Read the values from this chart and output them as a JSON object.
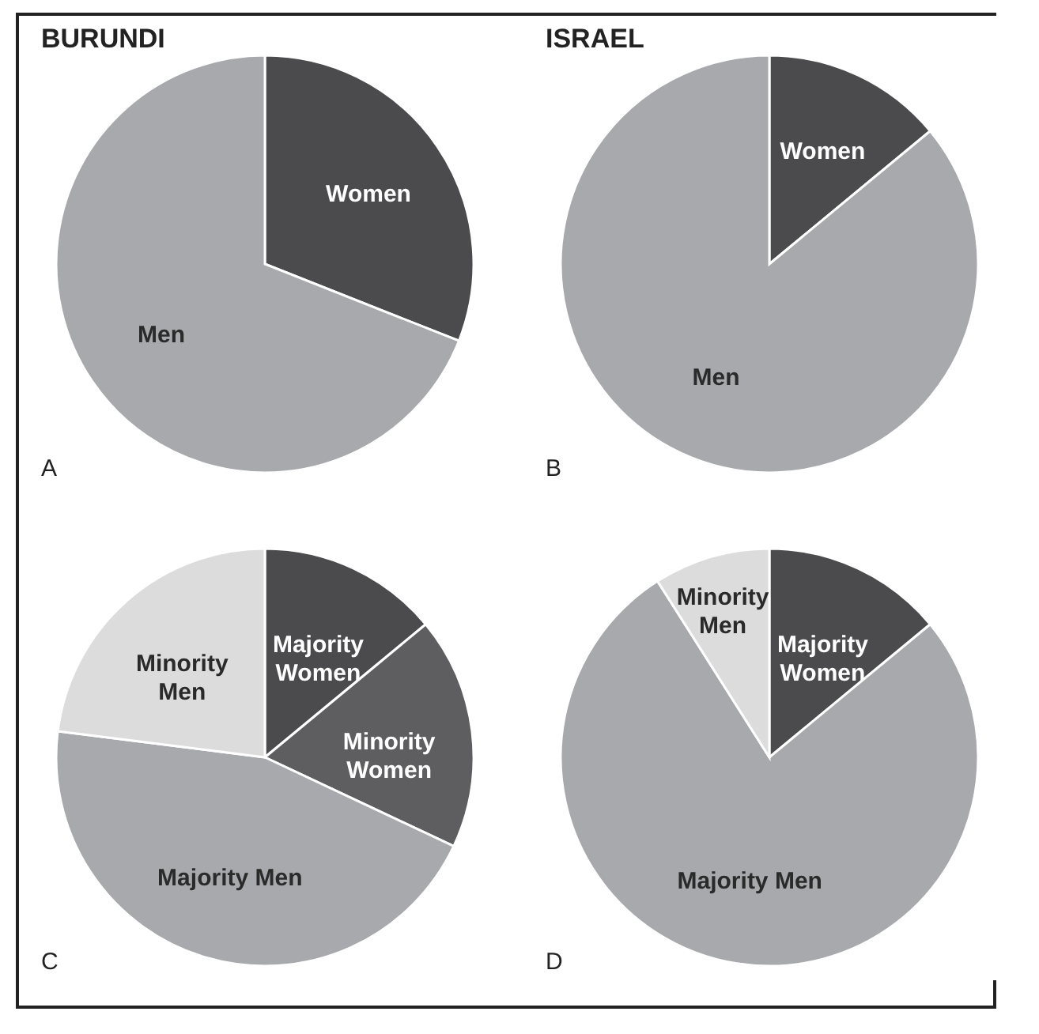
{
  "chart_data": [
    {
      "type": "pie",
      "title": "BURUNDI",
      "categories": [
        "Women",
        "Men"
      ],
      "values": [
        31,
        69
      ],
      "colors": [
        "#4b4b4d",
        "#a8a9ac"
      ],
      "annotations": [
        "A"
      ]
    },
    {
      "type": "pie",
      "title": "ISRAEL",
      "categories": [
        "Women",
        "Men"
      ],
      "values": [
        14,
        86
      ],
      "colors": [
        "#4b4b4d",
        "#a8a9ac"
      ],
      "annotations": [
        "B"
      ]
    },
    {
      "type": "pie",
      "categories": [
        "Majority Women",
        "Minority Women",
        "Majority Men",
        "Minority Men"
      ],
      "values": [
        14,
        18,
        45,
        23
      ],
      "colors": [
        "#4b4b4d",
        "#5e5e60",
        "#a8a9ac",
        "#dcdcdc"
      ],
      "annotations": [
        "C"
      ]
    },
    {
      "type": "pie",
      "categories": [
        "Majority Women",
        "Majority Men",
        "Minority Men"
      ],
      "values": [
        14,
        77,
        9
      ],
      "colors": [
        "#4b4b4d",
        "#a8a9ac",
        "#dcdcdc"
      ],
      "annotations": [
        "D"
      ]
    }
  ]
}
